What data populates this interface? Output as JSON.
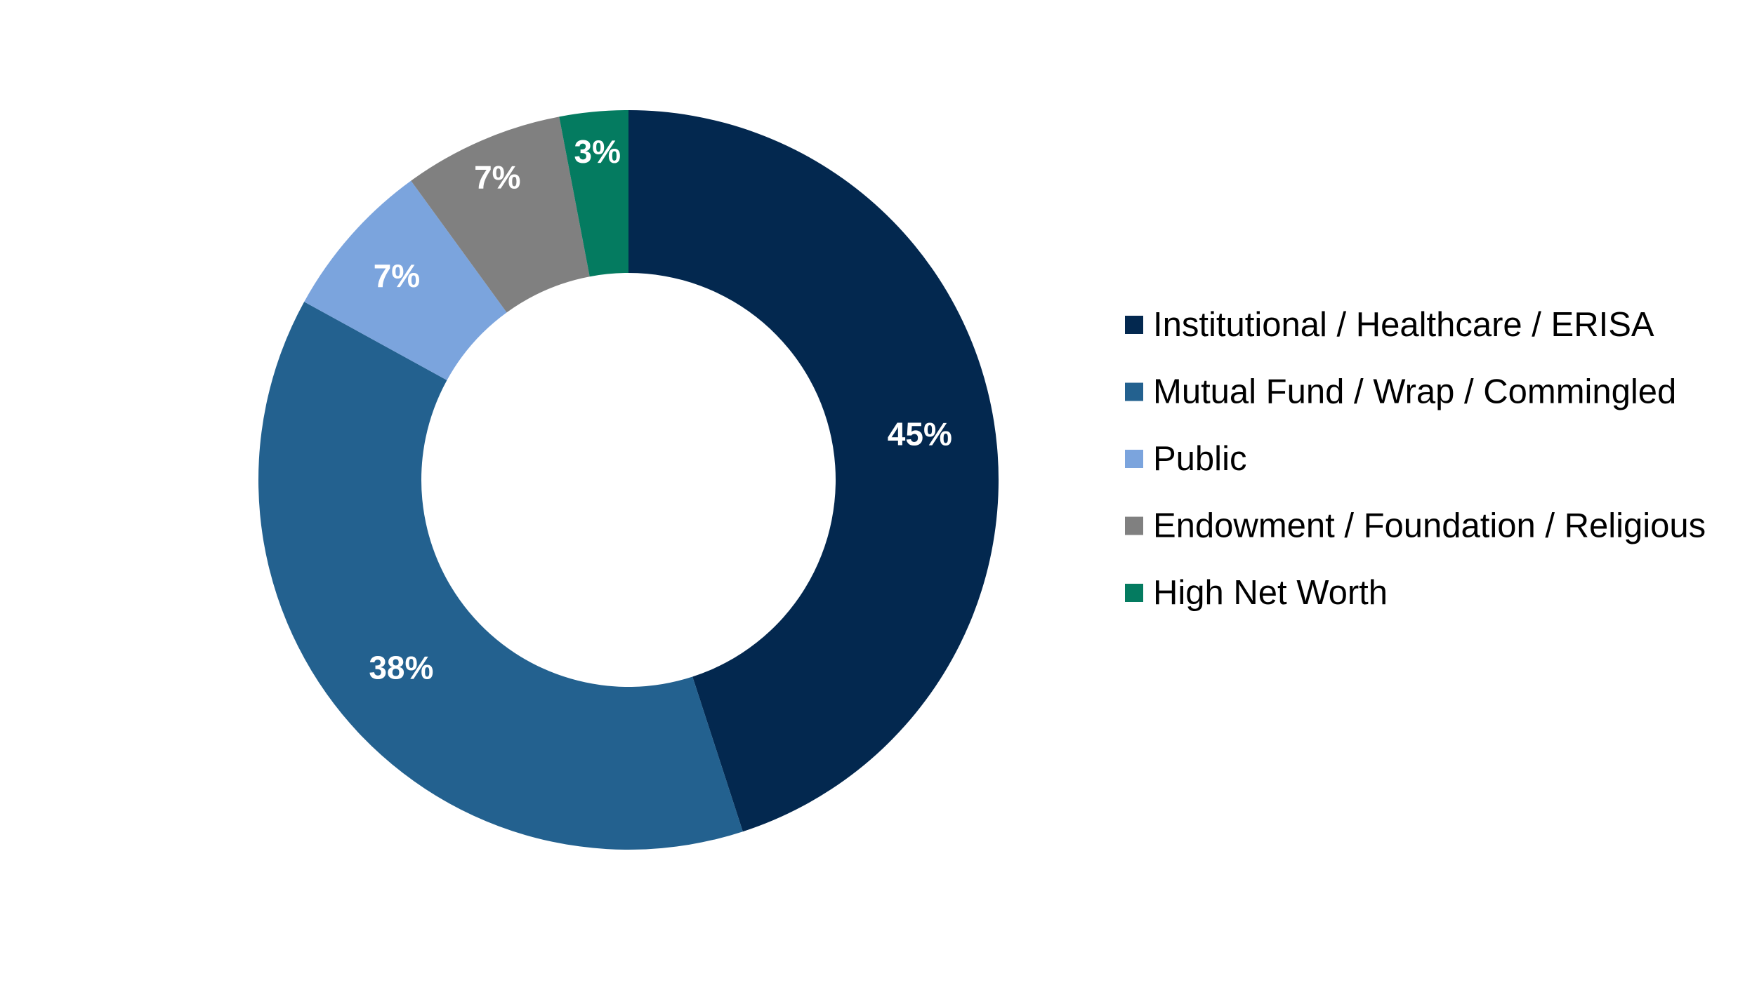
{
  "chart_data": {
    "type": "pie",
    "donut": true,
    "categories": [
      "Institutional / Healthcare / ERISA",
      "Mutual Fund / Wrap / Commingled",
      "Public",
      "Endowment / Foundation / Religious",
      "High Net Worth"
    ],
    "values": [
      45,
      38,
      7,
      7,
      3
    ],
    "data_labels": [
      "45%",
      "38%",
      "7%",
      "7%",
      "3%"
    ],
    "colors": [
      "#03284f",
      "#23618f",
      "#7ba4dd",
      "#808080",
      "#047b60"
    ],
    "legend_position": "right"
  }
}
